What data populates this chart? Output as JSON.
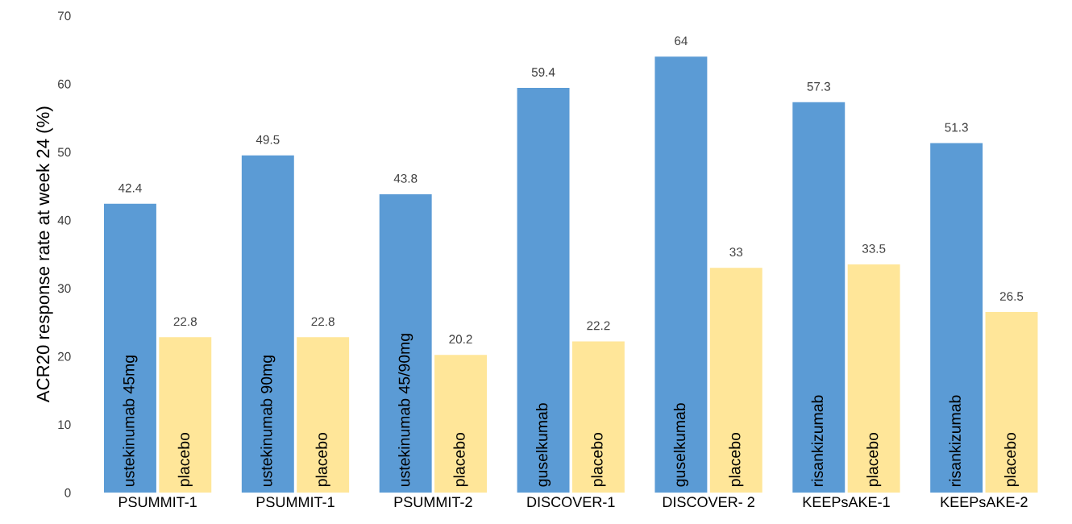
{
  "chart_data": {
    "type": "bar",
    "ylabel": "ACR20 response rate at week 24 (%)",
    "categories": [
      "PSUMMIT-1",
      "PSUMMIT-1",
      "PSUMMIT-2",
      "DISCOVER-1",
      "DISCOVER- 2",
      "KEEPsAKE-1",
      "KEEPsAKE-2"
    ],
    "series": [
      {
        "color": "#5b9bd5",
        "values": [
          42.4,
          49.5,
          43.8,
          59.4,
          64,
          57.3,
          51.3
        ]
      },
      {
        "color": "#ffe699",
        "values": [
          22.8,
          22.8,
          20.2,
          22.2,
          33,
          33.5,
          26.5
        ]
      }
    ],
    "annotations": [
      "ustekinumab 45mg",
      "placebo",
      "ustekinumab 90mg",
      "placebo",
      "ustekinumab 45/90mg",
      "placebo",
      "guselkumab",
      "placebo",
      "guselkumab",
      "placebo",
      "risankizumab",
      "placebo",
      "risankizumab",
      "placebo"
    ],
    "ylim": [
      0,
      70
    ],
    "yticks": [
      0,
      10,
      20,
      30,
      40,
      50,
      60,
      70
    ],
    "data_labels": true,
    "grid": false,
    "legend": false
  }
}
